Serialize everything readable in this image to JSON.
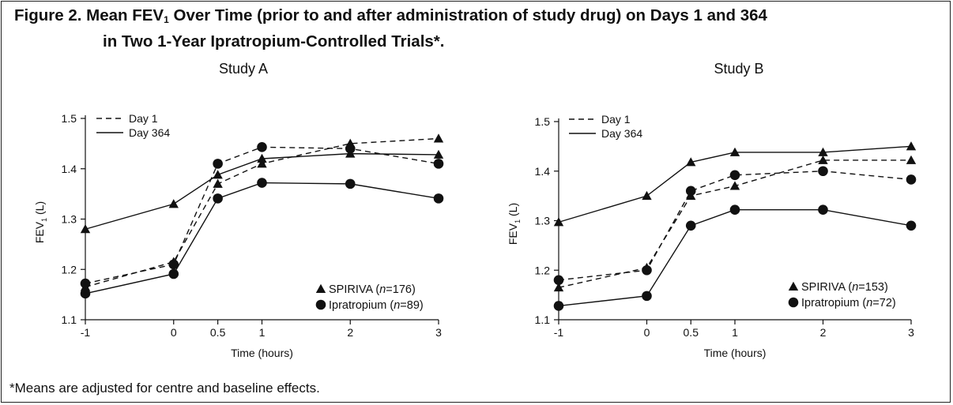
{
  "figure": {
    "title_part1": "Figure 2. Mean FEV",
    "title_sub": "1",
    "title_part2": " Over Time (prior to and after administration of study drug) on Days 1 and 364",
    "title_line2": "in Two 1-Year Ipratropium-Controlled Trials*.",
    "footnote": "*Means are adjusted for centre and baseline effects."
  },
  "chart_data": [
    {
      "type": "line",
      "title": "Study A",
      "xlabel": "Time (hours)",
      "ylabel_main": "FEV",
      "ylabel_sub": "1",
      "ylabel_unit": " (L)",
      "x": [
        -1,
        0,
        0.5,
        1,
        2,
        3
      ],
      "x_ticks": [
        "-1",
        "0",
        "0.5",
        "1",
        "2",
        "3"
      ],
      "y_ticks": [
        "1.1",
        "1.2",
        "1.3",
        "1.4",
        "1.5"
      ],
      "ylim": [
        1.1,
        1.5
      ],
      "line_legend": [
        {
          "label": "Day 1",
          "style": "dashed"
        },
        {
          "label": "Day 364",
          "style": "solid"
        }
      ],
      "marker_legend": [
        {
          "marker": "triangle",
          "name": "SPIRIVA (",
          "n_label": "n",
          "n_value": "=176)"
        },
        {
          "marker": "circle",
          "name": "Ipratropium (",
          "n_label": "n",
          "n_value": "=89)"
        }
      ],
      "series": [
        {
          "drug": "SPIRIVA",
          "day": "Day 1",
          "marker": "triangle",
          "style": "dashed",
          "values": [
            1.165,
            1.215,
            1.37,
            1.41,
            1.45,
            1.46
          ]
        },
        {
          "drug": "Ipratropium",
          "day": "Day 1",
          "marker": "circle",
          "style": "dashed",
          "values": [
            1.172,
            1.21,
            1.41,
            1.443,
            1.44,
            1.41
          ]
        },
        {
          "drug": "SPIRIVA",
          "day": "Day 364",
          "marker": "triangle",
          "style": "solid",
          "values": [
            1.28,
            1.33,
            1.388,
            1.42,
            1.43,
            1.428
          ]
        },
        {
          "drug": "Ipratropium",
          "day": "Day 364",
          "marker": "circle",
          "style": "solid",
          "values": [
            1.152,
            1.191,
            1.341,
            1.372,
            1.37,
            1.341
          ]
        }
      ]
    },
    {
      "type": "line",
      "title": "Study B",
      "xlabel": "Time (hours)",
      "ylabel_main": "FEV",
      "ylabel_sub": "1",
      "ylabel_unit": " (L)",
      "x": [
        -1,
        0,
        0.5,
        1,
        2,
        3
      ],
      "x_ticks": [
        "-1",
        "0",
        "0.5",
        "1",
        "2",
        "3"
      ],
      "y_ticks": [
        "1.1",
        "1.2",
        "1.3",
        "1.4",
        "1.5"
      ],
      "ylim": [
        1.1,
        1.5
      ],
      "line_legend": [
        {
          "label": "Day 1",
          "style": "dashed"
        },
        {
          "label": "Day 364",
          "style": "solid"
        }
      ],
      "marker_legend": [
        {
          "marker": "triangle",
          "name": "SPIRIVA (",
          "n_label": "n",
          "n_value": "=153)"
        },
        {
          "marker": "circle",
          "name": "Ipratropium (",
          "n_label": "n",
          "n_value": "=72)"
        }
      ],
      "series": [
        {
          "drug": "SPIRIVA",
          "day": "Day 1",
          "marker": "triangle",
          "style": "dashed",
          "values": [
            1.165,
            1.205,
            1.35,
            1.37,
            1.422,
            1.422
          ]
        },
        {
          "drug": "Ipratropium",
          "day": "Day 1",
          "marker": "circle",
          "style": "dashed",
          "values": [
            1.18,
            1.2,
            1.36,
            1.392,
            1.4,
            1.383
          ]
        },
        {
          "drug": "SPIRIVA",
          "day": "Day 364",
          "marker": "triangle",
          "style": "solid",
          "values": [
            1.297,
            1.35,
            1.418,
            1.438,
            1.438,
            1.45
          ]
        },
        {
          "drug": "Ipratropium",
          "day": "Day 364",
          "marker": "circle",
          "style": "solid",
          "values": [
            1.128,
            1.148,
            1.29,
            1.322,
            1.322,
            1.29
          ]
        }
      ]
    }
  ]
}
